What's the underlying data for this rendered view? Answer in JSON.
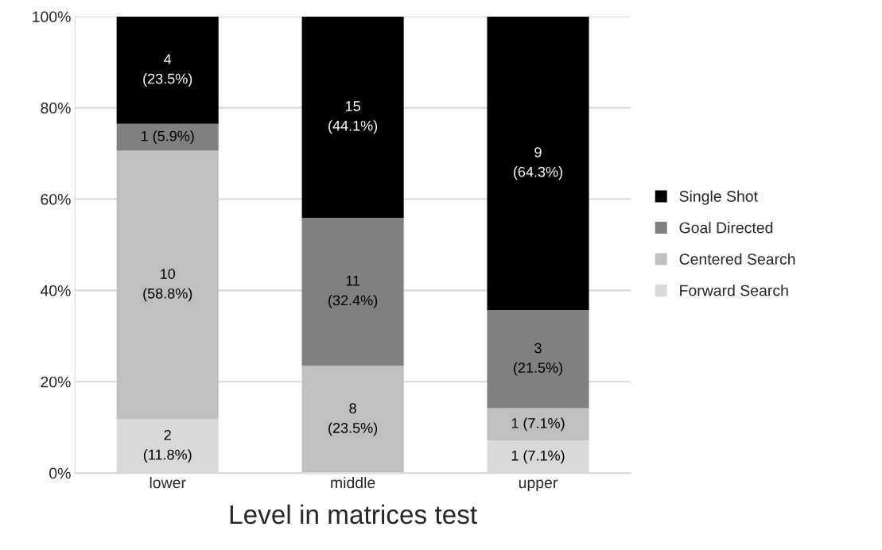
{
  "chart_data": {
    "type": "bar",
    "stacked": true,
    "xlabel": "Level in matrices test",
    "categories": [
      "lower",
      "middle",
      "upper"
    ],
    "series": [
      {
        "name": "Forward Search",
        "color": "#d9d9d9",
        "values": [
          11.8,
          0,
          7.1
        ],
        "value_labels": [
          "2\n(11.8%)",
          null,
          "1 (7.1%)"
        ]
      },
      {
        "name": "Centered Search",
        "color": "#bfbfbf",
        "values": [
          58.8,
          23.5,
          7.1
        ],
        "value_labels": [
          "10\n(58.8%)",
          "8\n(23.5%)",
          "1 (7.1%)"
        ]
      },
      {
        "name": "Goal Directed",
        "color": "#808080",
        "values": [
          5.9,
          32.4,
          21.5
        ],
        "value_labels": [
          "1 (5.9%)",
          "11\n(32.4%)",
          "3\n(21.5%)"
        ]
      },
      {
        "name": "Single Shot",
        "color": "#000000",
        "values": [
          23.5,
          44.1,
          64.3
        ],
        "value_labels": [
          "4\n(23.5%)",
          "15\n(44.1%)",
          "9\n(64.3%)"
        ]
      }
    ],
    "ylim": [
      0,
      100
    ],
    "yticks": [
      {
        "value": 0,
        "label": "0%"
      },
      {
        "value": 20,
        "label": "20%"
      },
      {
        "value": 40,
        "label": "40%"
      },
      {
        "value": 60,
        "label": "60%"
      },
      {
        "value": 80,
        "label": "80%"
      },
      {
        "value": 100,
        "label": "100%"
      }
    ],
    "grid": "y",
    "legend": "right"
  }
}
